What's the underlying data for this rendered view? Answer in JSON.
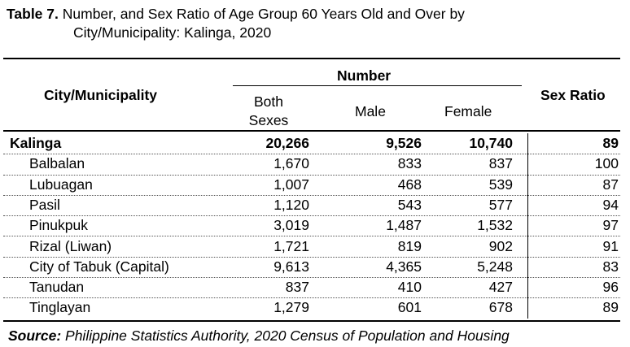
{
  "title": {
    "label": "Table 7.",
    "text": "Number, and Sex Ratio of Age Group 60 Years Old and Over by",
    "text_line2": "City/Municipality: Kalinga, 2020"
  },
  "headers": {
    "city": "City/Municipality",
    "number": "Number",
    "both_line1": "Both",
    "both_line2": "Sexes",
    "male": "Male",
    "female": "Female",
    "sex_ratio": "Sex Ratio"
  },
  "rows": [
    {
      "name": "Kalinga",
      "both": "20,266",
      "male": "9,526",
      "female": "10,740",
      "ratio": "89"
    },
    {
      "name": "Balbalan",
      "both": "1,670",
      "male": "833",
      "female": "837",
      "ratio": "100"
    },
    {
      "name": "Lubuagan",
      "both": "1,007",
      "male": "468",
      "female": "539",
      "ratio": "87"
    },
    {
      "name": "Pasil",
      "both": "1,120",
      "male": "543",
      "female": "577",
      "ratio": "94"
    },
    {
      "name": "Pinukpuk",
      "both": "3,019",
      "male": "1,487",
      "female": "1,532",
      "ratio": "97"
    },
    {
      "name": "Rizal (Liwan)",
      "both": "1,721",
      "male": "819",
      "female": "902",
      "ratio": "91"
    },
    {
      "name": "City of Tabuk (Capital)",
      "both": "9,613",
      "male": "4,365",
      "female": "5,248",
      "ratio": "83"
    },
    {
      "name": "Tanudan",
      "both": "837",
      "male": "410",
      "female": "427",
      "ratio": "96"
    },
    {
      "name": "Tinglayan",
      "both": "1,279",
      "male": "601",
      "female": "678",
      "ratio": "89"
    }
  ],
  "source": {
    "label": "Source:",
    "text": "Philippine Statistics Authority, 2020 Census of Population and Housing"
  }
}
